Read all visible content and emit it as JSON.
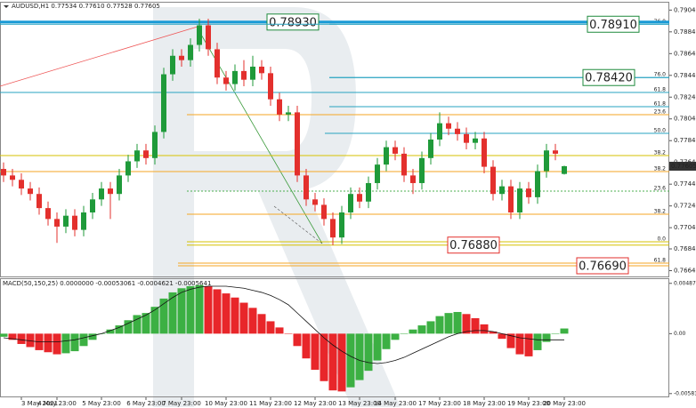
{
  "chart_data": [
    {
      "type": "candlestick",
      "title": "AUDUSD,H1  0.77534 0.77610 0.77528 0.77605",
      "open": [
        0.7758,
        0.7752,
        0.7748,
        0.774,
        0.7735,
        0.7722,
        0.7712,
        0.7705,
        0.7715,
        0.7702,
        0.7718,
        0.773,
        0.774,
        0.7735,
        0.7752,
        0.7765,
        0.7775,
        0.7768,
        0.7792,
        0.7845,
        0.7862,
        0.7858,
        0.7872,
        0.789,
        0.7868,
        0.7842,
        0.7836,
        0.7848,
        0.784,
        0.7852,
        0.7846,
        0.7822,
        0.7808,
        0.781,
        0.7752,
        0.773,
        0.7725,
        0.7712,
        0.7695,
        0.7718,
        0.7735,
        0.7728,
        0.7745,
        0.7762,
        0.7778,
        0.7772,
        0.7752,
        0.7745,
        0.7768,
        0.7785,
        0.78,
        0.7795,
        0.779,
        0.7782,
        0.7786,
        0.776,
        0.7735,
        0.7742,
        0.7718,
        0.774,
        0.7732,
        0.7756,
        0.7775,
        0.77534
      ],
      "high": [
        0.7764,
        0.7758,
        0.7754,
        0.7746,
        0.7741,
        0.7728,
        0.7718,
        0.7721,
        0.7721,
        0.7724,
        0.7736,
        0.7746,
        0.7746,
        0.7758,
        0.7771,
        0.7781,
        0.7781,
        0.7798,
        0.7851,
        0.7868,
        0.7868,
        0.7878,
        0.7896,
        0.7896,
        0.7874,
        0.7848,
        0.7854,
        0.7858,
        0.7862,
        0.7858,
        0.7852,
        0.7828,
        0.7816,
        0.7816,
        0.7758,
        0.7736,
        0.7731,
        0.7718,
        0.7724,
        0.7741,
        0.7741,
        0.7751,
        0.7768,
        0.7784,
        0.7784,
        0.7778,
        0.7758,
        0.7774,
        0.7791,
        0.781,
        0.7806,
        0.7801,
        0.7796,
        0.7792,
        0.7792,
        0.7766,
        0.7748,
        0.7748,
        0.7746,
        0.7746,
        0.7762,
        0.7781,
        0.7781,
        0.7761
      ],
      "low": [
        0.7746,
        0.7742,
        0.7734,
        0.7729,
        0.7716,
        0.7706,
        0.769,
        0.7699,
        0.7696,
        0.7696,
        0.7712,
        0.7724,
        0.7712,
        0.7729,
        0.7746,
        0.7759,
        0.7762,
        0.7762,
        0.7786,
        0.7839,
        0.7852,
        0.7852,
        0.7866,
        0.7862,
        0.7836,
        0.783,
        0.783,
        0.7834,
        0.7834,
        0.784,
        0.7816,
        0.7802,
        0.7802,
        0.7746,
        0.7724,
        0.7719,
        0.7706,
        0.7688,
        0.7689,
        0.7712,
        0.7722,
        0.7722,
        0.7739,
        0.7756,
        0.7766,
        0.7746,
        0.7735,
        0.7739,
        0.7762,
        0.7779,
        0.7789,
        0.7784,
        0.7776,
        0.7776,
        0.7754,
        0.7729,
        0.7729,
        0.7712,
        0.7712,
        0.7726,
        0.7726,
        0.775,
        0.7766,
        0.77528
      ],
      "close": [
        0.7752,
        0.7748,
        0.774,
        0.7735,
        0.7722,
        0.7712,
        0.7705,
        0.7715,
        0.7702,
        0.7718,
        0.773,
        0.774,
        0.7735,
        0.7752,
        0.7765,
        0.7775,
        0.7768,
        0.7792,
        0.7845,
        0.7862,
        0.7858,
        0.7872,
        0.789,
        0.7868,
        0.7842,
        0.7836,
        0.7848,
        0.784,
        0.7852,
        0.7846,
        0.7822,
        0.7808,
        0.781,
        0.7752,
        0.773,
        0.7725,
        0.7712,
        0.7695,
        0.7718,
        0.7735,
        0.7728,
        0.7745,
        0.7762,
        0.7778,
        0.7772,
        0.7752,
        0.7745,
        0.7768,
        0.7785,
        0.78,
        0.7795,
        0.779,
        0.7782,
        0.7786,
        0.776,
        0.7735,
        0.7742,
        0.7718,
        0.774,
        0.7732,
        0.7756,
        0.7775,
        0.7772,
        0.77605
      ],
      "up_color": "#1f9a3a",
      "down_color": "#e3302d",
      "ylim": [
        0.766,
        0.791
      ],
      "yticks": [
        {
          "value": 0.7904,
          "label": "0.79040"
        },
        {
          "value": 0.7884,
          "label": "0.78840"
        },
        {
          "value": 0.7864,
          "label": "0.78640"
        },
        {
          "value": 0.7844,
          "label": "0.78440"
        },
        {
          "value": 0.7824,
          "label": "0.78240"
        },
        {
          "value": 0.7804,
          "label": "0.78040"
        },
        {
          "value": 0.7784,
          "label": "0.77840"
        },
        {
          "value": 0.7764,
          "label": "0.77640"
        },
        {
          "value": 0.7744,
          "label": "0.77440"
        },
        {
          "value": 0.7724,
          "label": "0.77240"
        },
        {
          "value": 0.7704,
          "label": "0.77040"
        },
        {
          "value": 0.76845,
          "label": "0.76845"
        },
        {
          "value": 0.76645,
          "label": "0.76645"
        }
      ],
      "xticks": [
        {
          "value": 2,
          "label": "3 May 2021"
        },
        {
          "value": 6,
          "label": "4 May 23:00"
        },
        {
          "value": 11,
          "label": "5 May 23:00"
        },
        {
          "value": 16,
          "label": "6 May 23:00"
        },
        {
          "value": 20,
          "label": "7 May 23:00"
        },
        {
          "value": 25,
          "label": "10 May 23:00"
        },
        {
          "value": 30,
          "label": "11 May 23:00"
        },
        {
          "value": 35,
          "label": "12 May 23:00"
        },
        {
          "value": 40,
          "label": "13 May 23:00"
        },
        {
          "value": 44,
          "label": "14 May 23:00"
        },
        {
          "value": 49,
          "label": "17 May 23:00"
        },
        {
          "value": 54,
          "label": "18 May 23:00"
        },
        {
          "value": 59,
          "label": "19 May 23:00"
        },
        {
          "value": 63,
          "label": "20 May 23:00"
        }
      ],
      "last_price": {
        "value": 0.77605,
        "label": "0.77605"
      },
      "price_boxes": [
        {
          "value": 0.7893,
          "label": "0.78930",
          "color": "#1e8a3c",
          "line_color": "#1a9ad6"
        },
        {
          "value": 0.7891,
          "label": "0.78910",
          "color": "#1e8a3c",
          "line_color": "#27a3c1"
        },
        {
          "value": 0.7842,
          "label": "0.78420",
          "color": "#1e8a3c",
          "line_color": "#27a3c1"
        },
        {
          "value": 0.7688,
          "label": "0.76880",
          "color": "#e3302d",
          "line_color": "#d6c200"
        },
        {
          "value": 0.7669,
          "label": "0.76690",
          "color": "#e3302d",
          "line_color": "#f5a623"
        }
      ],
      "levels": [
        {
          "value": 0.7891,
          "label": "76.0",
          "color": "#27a3c1"
        },
        {
          "value": 0.7842,
          "label": "76.0",
          "color": "#27a3c1"
        },
        {
          "value": 0.78283,
          "label": "61.8",
          "color": "#27a3c1"
        },
        {
          "value": 0.78152,
          "label": "61.8",
          "color": "#27a3c1"
        },
        {
          "value": 0.78079,
          "label": "23.6",
          "color": "#f5a623"
        },
        {
          "value": 0.77907,
          "label": "50.0",
          "color": "#27a3c1"
        },
        {
          "value": 0.77703,
          "label": "38.2",
          "color": "#d6c200"
        },
        {
          "value": 0.77556,
          "label": "38.2",
          "color": "#f5a623"
        },
        {
          "value": 0.77376,
          "label": "23.6",
          "color": "#4caf50",
          "dashed": true
        },
        {
          "value": 0.77164,
          "label": "38.2",
          "color": "#f5a623"
        },
        {
          "value": 0.7691,
          "label": "0.0",
          "color": "#d6c200"
        },
        {
          "value": 0.76714,
          "label": "61.8",
          "color": "#f5a623"
        }
      ]
    },
    {
      "type": "macd",
      "title": "MACD(50,150,25) 0.0000000 -0.00053061 -0.0004621 -0.0005641",
      "values": [
        -0.0003,
        -0.0006,
        -0.001,
        -0.0013,
        -0.0016,
        -0.0018,
        -0.002,
        -0.0019,
        -0.0017,
        -0.0012,
        -0.0006,
        0.0,
        0.0004,
        0.0008,
        0.0013,
        0.0018,
        0.002,
        0.0026,
        0.0034,
        0.004,
        0.0044,
        0.0046,
        0.0047,
        0.0046,
        0.0043,
        0.0039,
        0.0035,
        0.003,
        0.0025,
        0.0019,
        0.0012,
        0.0006,
        0.0,
        -0.0012,
        -0.0024,
        -0.0035,
        -0.0046,
        -0.0055,
        -0.0056,
        -0.0052,
        -0.0045,
        -0.0036,
        -0.0026,
        -0.0015,
        -0.0006,
        0.0,
        0.0004,
        0.0008,
        0.0012,
        0.0017,
        0.002,
        0.0021,
        0.0019,
        0.0015,
        0.0009,
        0.0002,
        -0.0005,
        -0.0014,
        -0.002,
        -0.0022,
        -0.0016,
        -0.0008,
        0.0,
        0.0005
      ],
      "line": [
        -0.0004,
        -0.0005,
        -0.0006,
        -0.0007,
        -0.0008,
        -0.0008,
        -0.0008,
        -0.0007,
        -0.0006,
        -0.0004,
        -0.0002,
        0.0,
        0.0003,
        0.0006,
        0.001,
        0.0014,
        0.0018,
        0.0023,
        0.0029,
        0.0035,
        0.004,
        0.0043,
        0.0045,
        0.0046,
        0.0046,
        0.0046,
        0.0045,
        0.0044,
        0.0042,
        0.004,
        0.0037,
        0.0033,
        0.0028,
        0.002,
        0.0012,
        0.0004,
        -0.0004,
        -0.0011,
        -0.0017,
        -0.0022,
        -0.0026,
        -0.0028,
        -0.0029,
        -0.0028,
        -0.0026,
        -0.0023,
        -0.0019,
        -0.0015,
        -0.0011,
        -0.0007,
        -0.0003,
        0.0,
        0.0002,
        0.0003,
        0.0003,
        0.0002,
        0.0,
        -0.0002,
        -0.0004,
        -0.0005,
        -0.0006,
        -0.0006,
        -0.0006,
        -0.0006
      ],
      "up_color": "#3cb043",
      "down_color": "#e8262a",
      "line_color": "#111111",
      "ylim": [
        -0.006,
        0.0052
      ],
      "yticks": [
        {
          "value": 0.0048761,
          "label": "0.0048761"
        },
        {
          "value": 0,
          "label": "0.00"
        },
        {
          "value": -0.0058101,
          "label": "-0.0058101"
        }
      ]
    }
  ]
}
